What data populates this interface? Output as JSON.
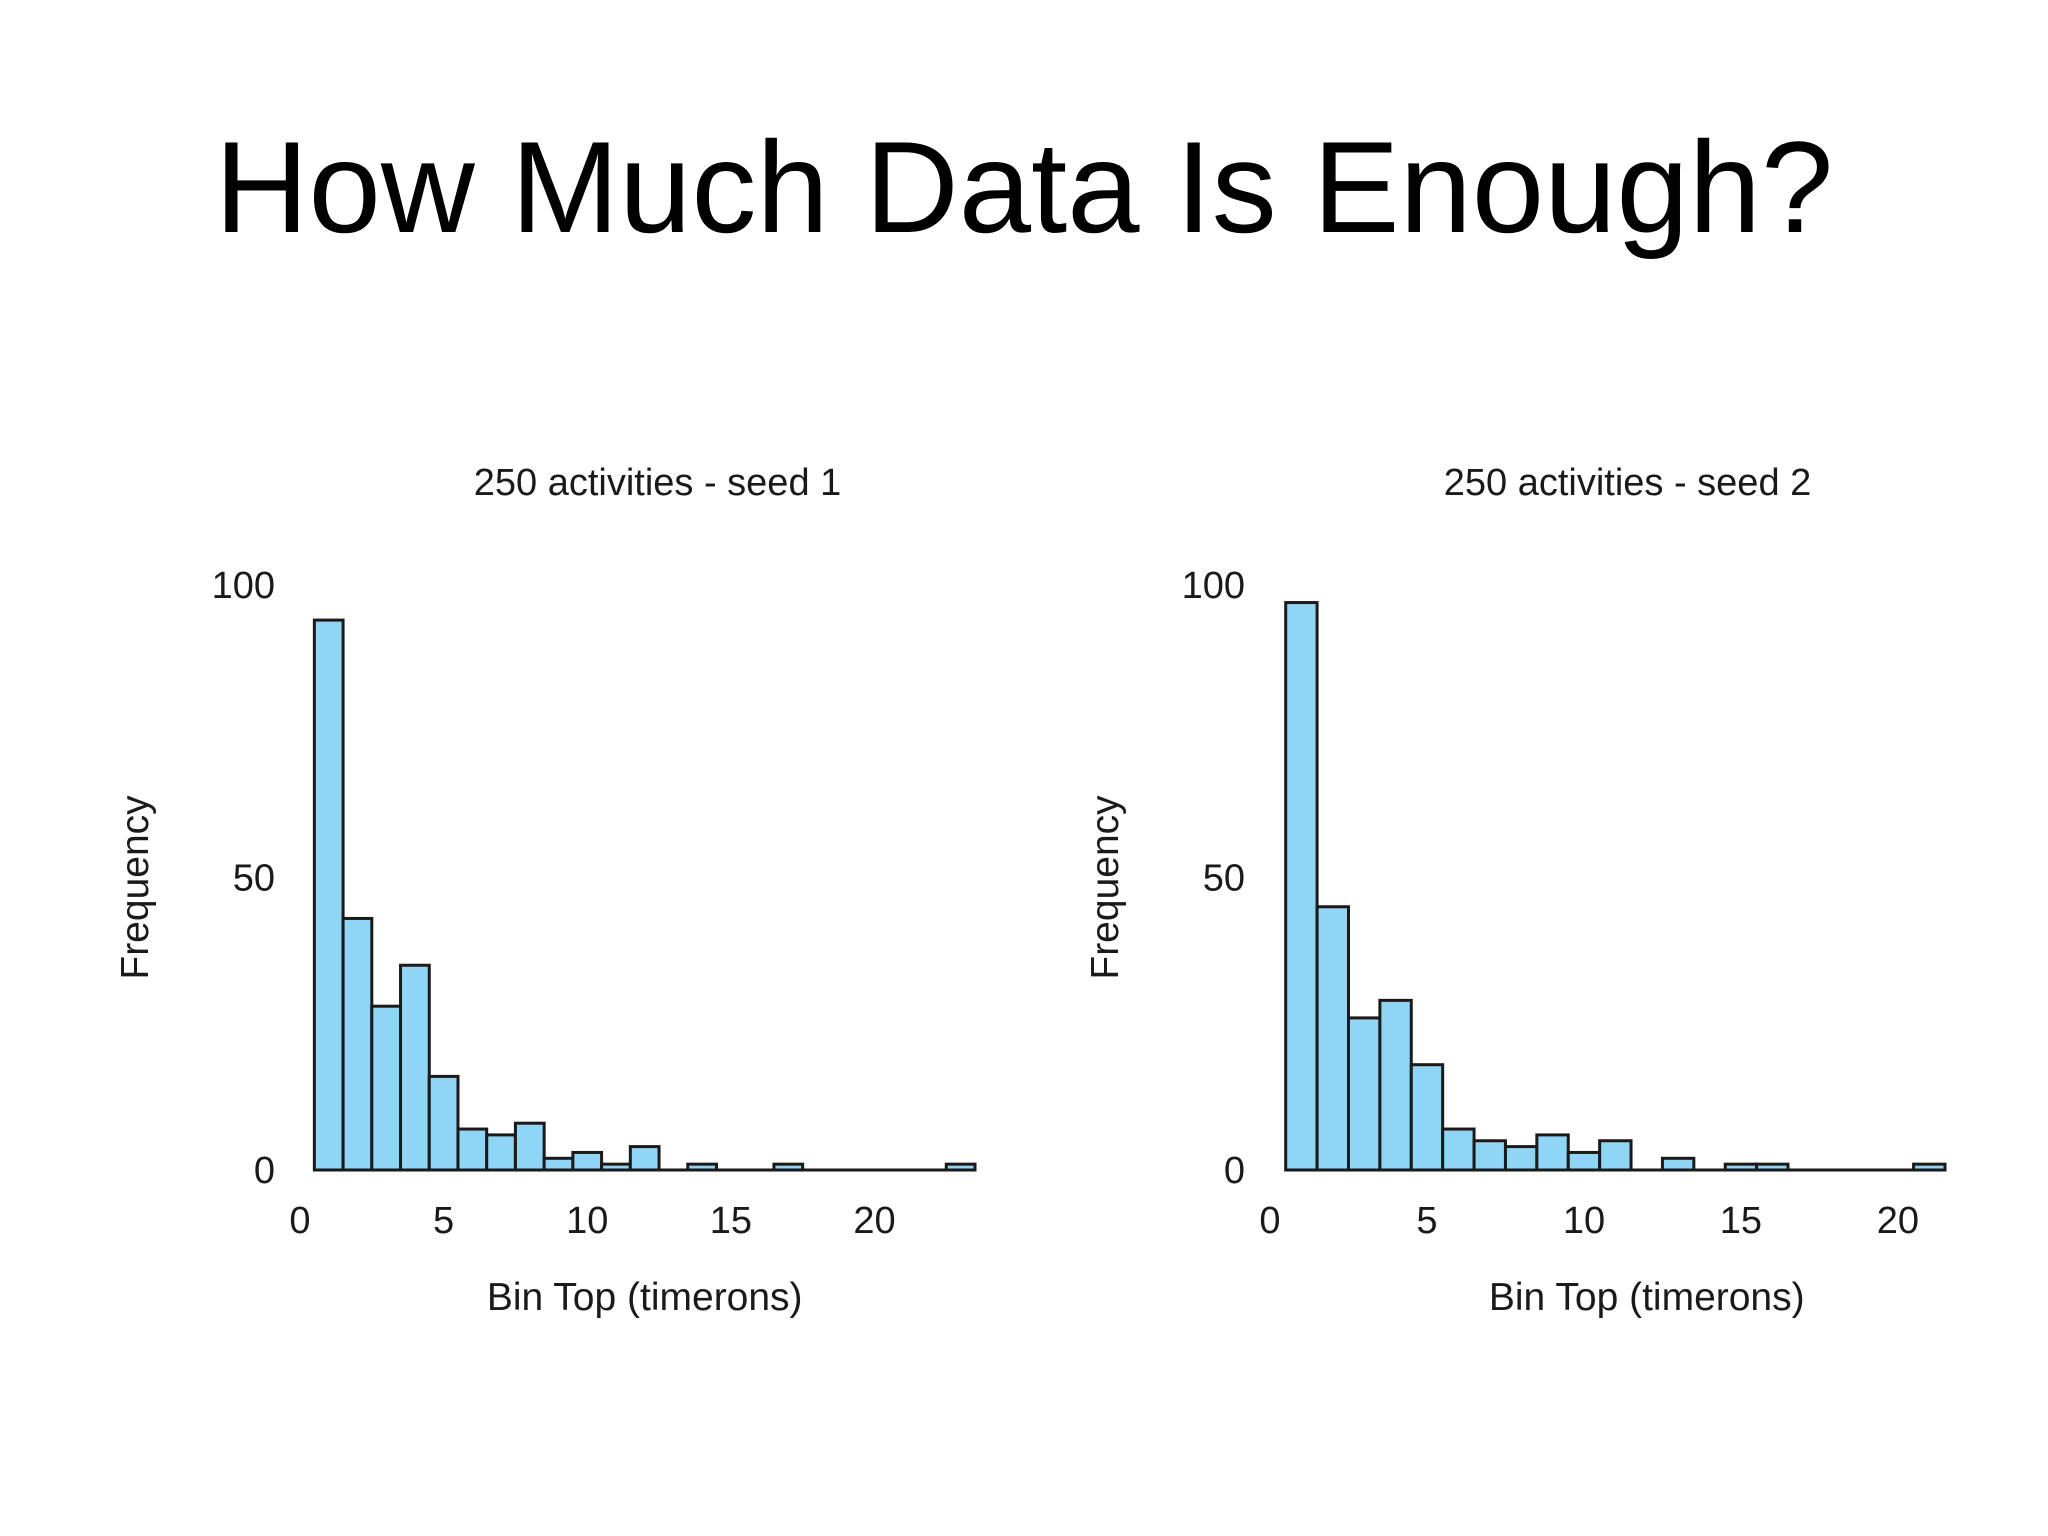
{
  "slide": {
    "title": "How Much Data Is Enough?"
  },
  "chart_data": [
    {
      "type": "bar",
      "title": "250 activities - seed 1",
      "xlabel": "Bin Top (timerons)",
      "ylabel": "Frequency",
      "xlim": [
        0,
        23.5
      ],
      "ylim": [
        0,
        100
      ],
      "x_ticks": [
        "0",
        "5",
        "10",
        "15",
        "20"
      ],
      "y_ticks": [
        "0",
        "50",
        "100"
      ],
      "bin_width": 1,
      "bin_starts": [
        0.5,
        1.5,
        2.5,
        3.5,
        4.5,
        5.5,
        6.5,
        7.5,
        8.5,
        9.5,
        10.5,
        11.5,
        12.5,
        13.5,
        14.5,
        15.5,
        16.5,
        17.5,
        18.5,
        19.5,
        20.5,
        21.5,
        22.5
      ],
      "values": [
        94,
        43,
        28,
        35,
        16,
        7,
        6,
        8,
        2,
        3,
        1,
        4,
        0,
        1,
        0,
        0,
        1,
        0,
        0,
        0,
        0,
        0,
        1
      ],
      "grid": false,
      "colors": {
        "bar_fill": "#8fd5f6",
        "bar_edge": "#1a1a1a"
      }
    },
    {
      "type": "bar",
      "title": "250 activities - seed 2",
      "xlabel": "Bin Top (timerons)",
      "ylabel": "Frequency",
      "xlim": [
        0,
        21.5
      ],
      "ylim": [
        0,
        100
      ],
      "x_ticks": [
        "0",
        "5",
        "10",
        "15",
        "20"
      ],
      "y_ticks": [
        "0",
        "50",
        "100"
      ],
      "bin_width": 1,
      "bin_starts": [
        0.5,
        1.5,
        2.5,
        3.5,
        4.5,
        5.5,
        6.5,
        7.5,
        8.5,
        9.5,
        10.5,
        11.5,
        12.5,
        13.5,
        14.5,
        15.5,
        16.5,
        17.5,
        18.5,
        19.5,
        20.5
      ],
      "values": [
        97,
        45,
        26,
        29,
        18,
        7,
        5,
        4,
        6,
        3,
        5,
        0,
        2,
        0,
        1,
        1,
        0,
        0,
        0,
        0,
        1
      ],
      "grid": false,
      "colors": {
        "bar_fill": "#8fd5f6",
        "bar_edge": "#1a1a1a"
      }
    }
  ]
}
